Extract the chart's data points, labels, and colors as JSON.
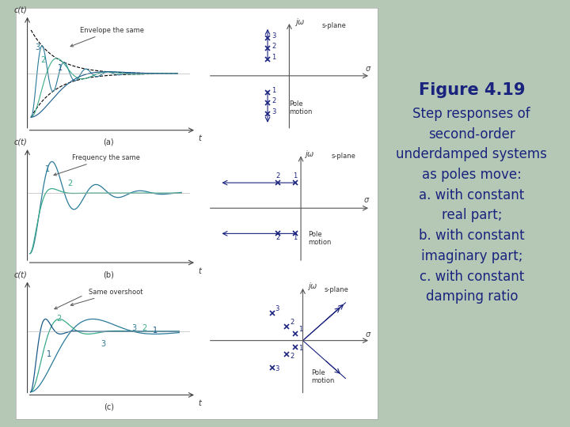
{
  "bg_color": "#b5c8b5",
  "panel_bg": "#ffffff",
  "text_color": "#1a237e",
  "title": "Figure 4.19",
  "subtitle_lines": [
    "Step responses of",
    "second-order",
    "underdamped systems",
    "as poles move:",
    "a. with constant",
    "real part;",
    "b. with constant",
    "imaginary part;",
    "c. with constant",
    "damping ratio"
  ],
  "title_fontsize": 15,
  "subtitle_fontsize": 12,
  "curve_color1": "#2a7a9a",
  "curve_color2": "#3aaa8a",
  "curve_color3": "#1a5a8a",
  "pole_color": "#1a237e",
  "axis_color": "#555555",
  "annot_color": "#333333",
  "env_color": "#222222"
}
